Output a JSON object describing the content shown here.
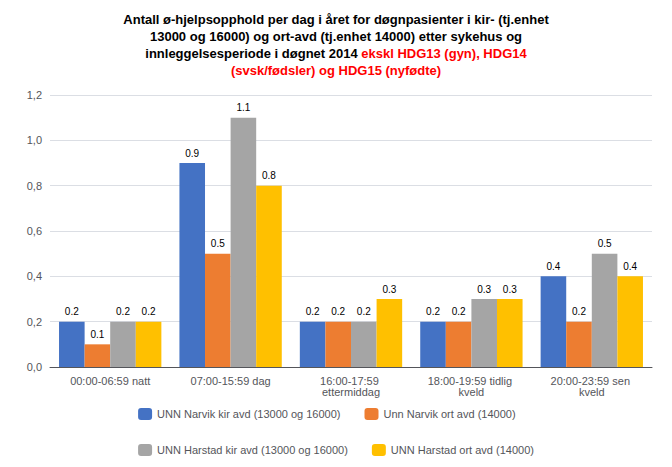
{
  "chart_data": {
    "type": "bar",
    "title": "Antall ø-hjelpsopphold per dag i året for døgnpasienter i kir- (tj.enhet\n13000 og 16000) og ort-avd (tj.enhet 14000) etter sykehus og\ninnleggelsesperiode i døgnet 2014",
    "subtitle": "ekskl HDG13 (gyn), HDG14\n(svsk/fødsler) og HDG15 (nyfødte)",
    "categories": [
      "00:00-06:59 natt",
      "07:00-15:59 dag",
      "16:00-17:59 ettermiddag",
      "18:00-19:59 tidlig kveld",
      "20:00-23:59 sen kveld"
    ],
    "series": [
      {
        "name": "UNN Narvik kir avd (13000 og 16000)",
        "color": "#4472C4",
        "values": [
          0.2,
          0.9,
          0.2,
          0.2,
          0.4
        ]
      },
      {
        "name": "Unn Narvik ort avd (14000)",
        "color": "#ED7D31",
        "values": [
          0.1,
          0.5,
          0.2,
          0.2,
          0.2
        ]
      },
      {
        "name": "UNN Harstad kir avd (13000 og 16000)",
        "color": "#A5A5A5",
        "values": [
          0.2,
          1.1,
          0.2,
          0.3,
          0.5
        ]
      },
      {
        "name": "UNN Harstad ort avd (14000)",
        "color": "#FFC000",
        "values": [
          0.2,
          0.8,
          0.3,
          0.3,
          0.4
        ]
      }
    ],
    "ylim": [
      0,
      1.2
    ],
    "yticks": [
      {
        "value": 0.0,
        "label": "0,0"
      },
      {
        "value": 0.2,
        "label": "0,2"
      },
      {
        "value": 0.4,
        "label": "0,4"
      },
      {
        "value": 0.6,
        "label": "0,6"
      },
      {
        "value": 0.8,
        "label": "0,8"
      },
      {
        "value": 1.0,
        "label": "1,0"
      },
      {
        "value": 1.2,
        "label": "1,2"
      }
    ],
    "grid": true,
    "legend": "bottom",
    "data_labels": true
  }
}
